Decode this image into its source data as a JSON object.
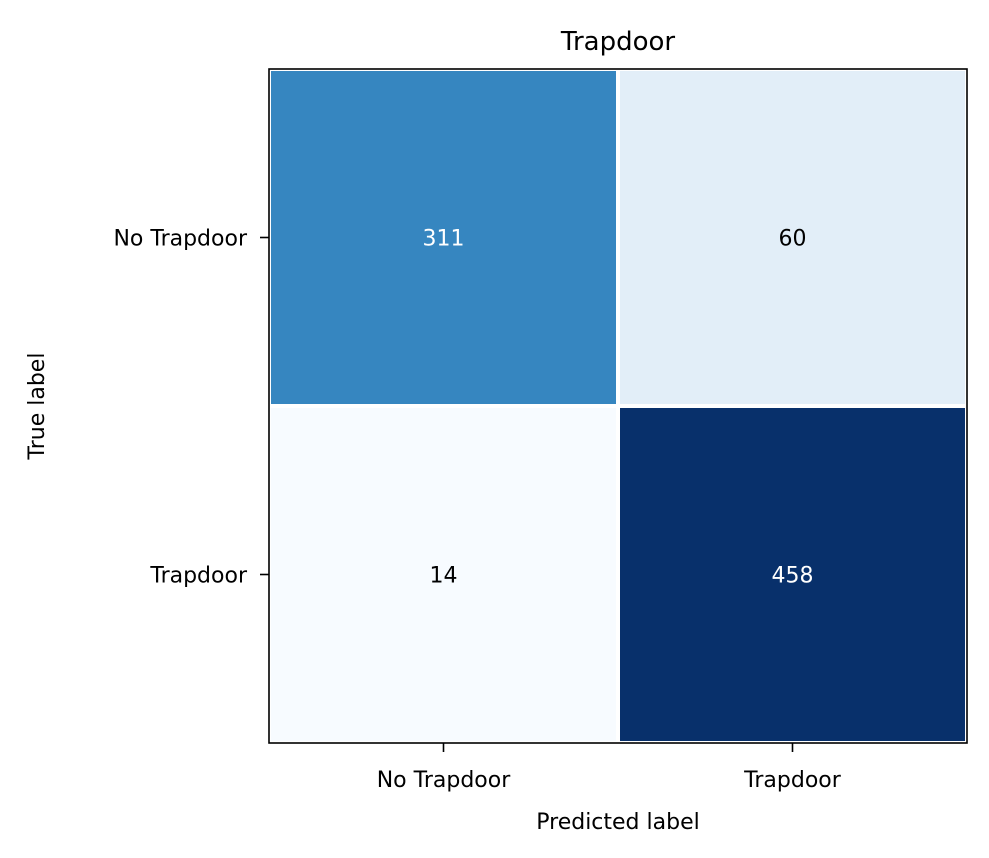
{
  "chart_data": {
    "type": "heatmap",
    "title": "Trapdoor",
    "xlabel": "Predicted label",
    "ylabel": "True label",
    "x_categories": [
      "No Trapdoor",
      "Trapdoor"
    ],
    "y_categories": [
      "No Trapdoor",
      "Trapdoor"
    ],
    "matrix": [
      [
        311,
        60
      ],
      [
        14,
        458
      ]
    ],
    "colormap": "Blues",
    "color_low": "#f7fbff",
    "color_high": "#08306b",
    "text_color_light": "#ffffff",
    "text_color_dark": "#000000",
    "cell_border_color": "#ffffff"
  }
}
